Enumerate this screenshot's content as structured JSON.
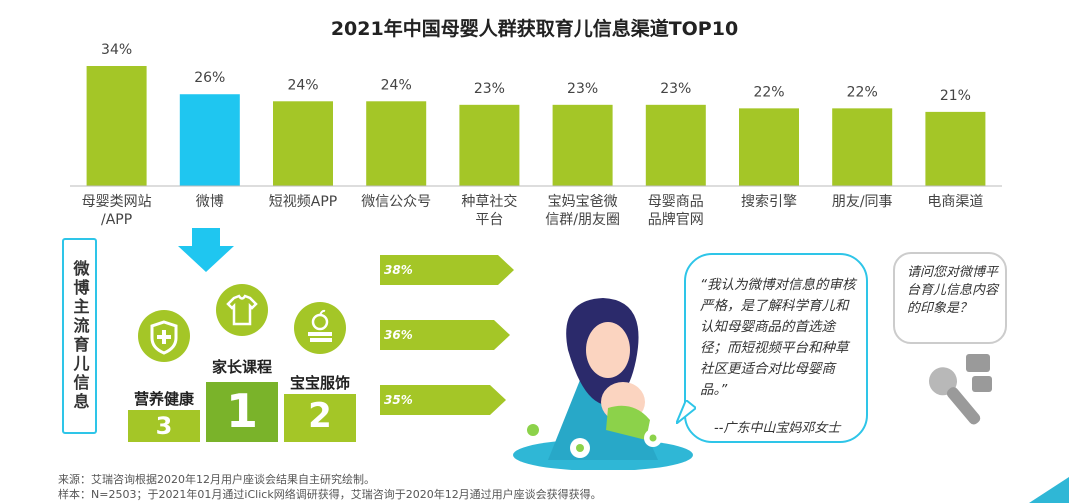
{
  "chart_data": {
    "type": "bar",
    "title": "2021年中国母婴人群获取育儿信息渠道TOP10",
    "categories": [
      [
        "母婴类网站",
        "/APP"
      ],
      [
        "微博"
      ],
      [
        "短视频APP"
      ],
      [
        "微信公众号"
      ],
      [
        "种草社交",
        "平台"
      ],
      [
        "宝妈宝爸微",
        "信群/朋友圈"
      ],
      [
        "母婴商品",
        "品牌官网"
      ],
      [
        "搜索引擎"
      ],
      [
        "朋友/同事"
      ],
      [
        "电商渠道"
      ]
    ],
    "values": [
      34,
      26,
      24,
      24,
      23,
      23,
      23,
      22,
      22,
      21
    ],
    "value_labels": [
      "34%",
      "26%",
      "24%",
      "24%",
      "23%",
      "23%",
      "23%",
      "22%",
      "22%",
      "21%"
    ],
    "highlight_index": 1,
    "colors": {
      "default": "#a4c627",
      "highlight": "#1fc6f0"
    },
    "ylim": [
      0,
      34
    ]
  },
  "side_panel": {
    "label": "微博主流育儿信息"
  },
  "podium": [
    {
      "label": "营养健康",
      "rank": "3",
      "icon": "shield-cross-icon"
    },
    {
      "label": "家长课程",
      "rank": "1",
      "icon": "tshirt-icon"
    },
    {
      "label": "宝宝服饰",
      "rank": "2",
      "icon": "apple-books-icon"
    }
  ],
  "stripes": [
    "38%",
    "36%",
    "35%"
  ],
  "quote": {
    "text": "“我认为微博对信息的审核严格，是了解科学育儿和认知母婴商品的首选途径；而短视频平台和种草社区更适合对比母婴商品。”",
    "author": "--广东中山宝妈邓女士"
  },
  "question": "请问您对微博平台育儿信息内容的印象是？",
  "footer": {
    "source": "来源：艾瑞咨询根据2020年12月用户座谈会结果自主研究绘制。",
    "sample": "样本：N=2503；于2021年01月通过iClick网络调研获得，艾瑞咨询于2020年12月通过用户座谈会获得获得。"
  }
}
